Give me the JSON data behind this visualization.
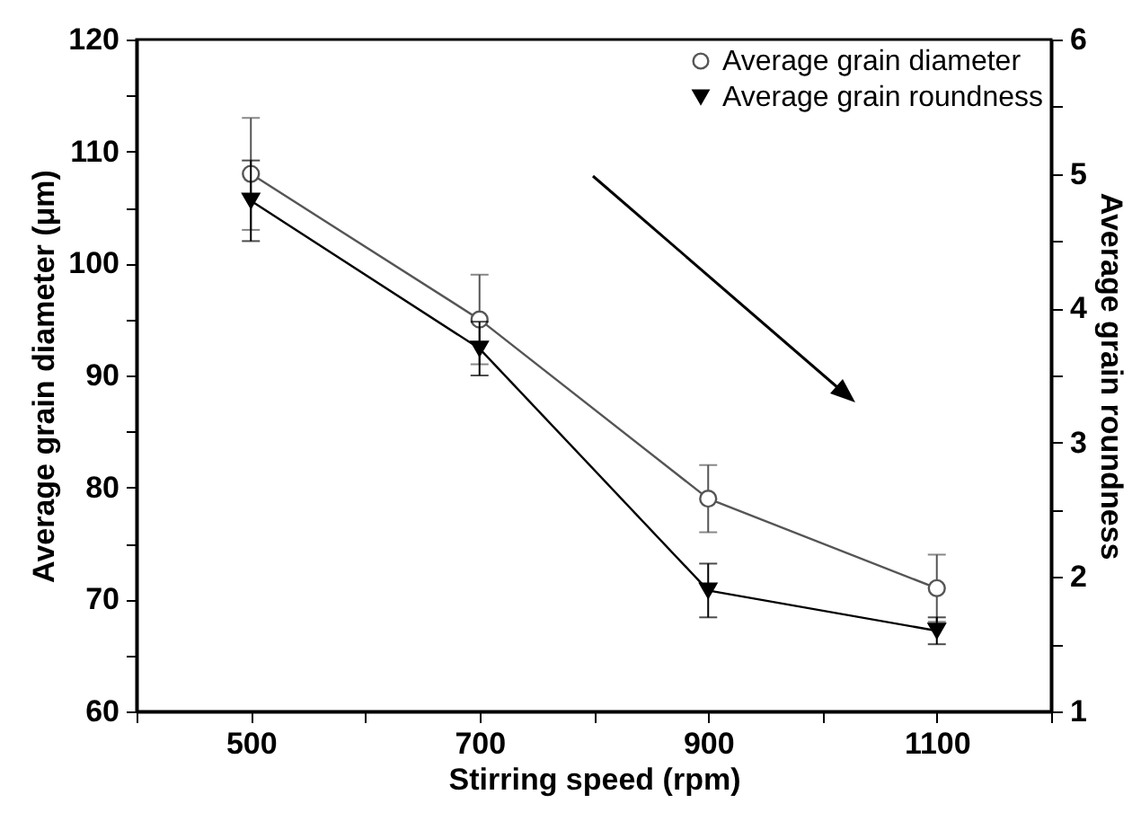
{
  "chart_data": {
    "type": "line",
    "xlabel": "Stirring speed (rpm)",
    "ylabel": "Average grain diameter (μm)",
    "y2label": "Average grain roundness",
    "x": [
      500,
      700,
      900,
      1100
    ],
    "xlim": [
      400,
      1200
    ],
    "xticks": [
      {
        "value": 400,
        "label": null
      },
      500,
      {
        "value": 600,
        "label": null
      },
      700,
      {
        "value": 800,
        "label": null
      },
      900,
      {
        "value": 1000,
        "label": null
      },
      1100,
      {
        "value": 1200,
        "label": null
      }
    ],
    "ylim": [
      60,
      120
    ],
    "yticks": [
      60,
      {
        "value": 65,
        "label": null
      },
      70,
      {
        "value": 75,
        "label": null
      },
      80,
      {
        "value": 85,
        "label": null
      },
      90,
      {
        "value": 95,
        "label": null
      },
      100,
      {
        "value": 105,
        "label": null
      },
      110,
      {
        "value": 115,
        "label": null
      },
      120
    ],
    "y2lim": [
      1,
      6
    ],
    "y2ticks": [
      1,
      {
        "value": 1.5,
        "label": null
      },
      2,
      {
        "value": 2.5,
        "label": null
      },
      3,
      {
        "value": 3.5,
        "label": null
      },
      4,
      {
        "value": 4.5,
        "label": null
      },
      5,
      {
        "value": 5.5,
        "label": null
      },
      6
    ],
    "series": [
      {
        "name": "Average grain diameter",
        "color": "#555555",
        "marker": "circle",
        "values": [
          108,
          95,
          79,
          71
        ],
        "errors": [
          5,
          4,
          3,
          3
        ]
      },
      {
        "name": "Average grain roundness",
        "color": "#000000",
        "marker": "triangle",
        "axis": "y2",
        "values": [
          4.8,
          3.7,
          1.9,
          1.6
        ],
        "errors": [
          0.3,
          0.2,
          0.2,
          0.1
        ]
      }
    ],
    "legend": "top right",
    "grid": false
  }
}
